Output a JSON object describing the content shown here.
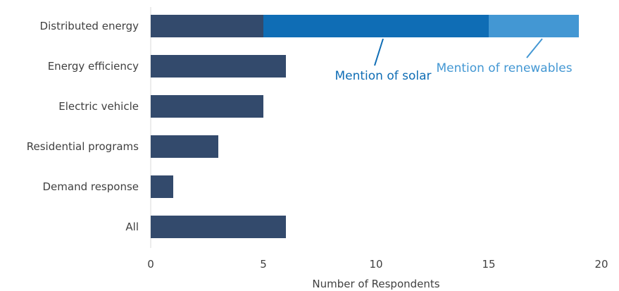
{
  "chart_data": {
    "type": "bar",
    "orientation": "horizontal",
    "stacked": true,
    "categories": [
      "Distributed energy",
      "Energy efficiency",
      "Electric vehicle",
      "Residential programs",
      "Demand response",
      "All"
    ],
    "series": [
      {
        "values": [
          5,
          6,
          5,
          3,
          1,
          6
        ],
        "color": "#334a6c"
      },
      {
        "values": [
          10,
          0,
          0,
          0,
          0,
          0
        ],
        "color": "#0f6db5"
      },
      {
        "values": [
          4,
          0,
          0,
          0,
          0,
          0
        ],
        "color": "#4397d3"
      }
    ],
    "xlabel": "Number of Respondents",
    "xlim": [
      0,
      20
    ],
    "xticks": [
      0,
      5,
      10,
      15,
      20
    ],
    "grid": false,
    "annotations": [
      {
        "text": "Mention of solar",
        "color": "#0f6db5",
        "category": "Distributed energy",
        "series_index": 1
      },
      {
        "text": "Mention of renewables",
        "color": "#4397d3",
        "category": "Distributed energy",
        "series_index": 2
      }
    ]
  }
}
